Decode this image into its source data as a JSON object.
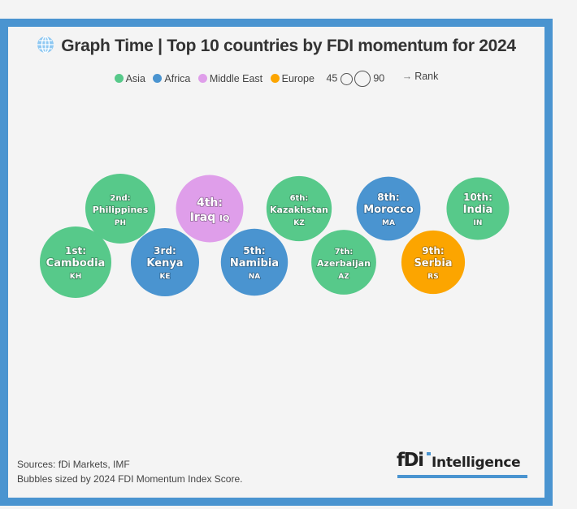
{
  "title": "Graph Time | Top 10 countries by FDI momentum for 2024",
  "title_icon": "globe-icon",
  "legend": {
    "regions": [
      {
        "name": "Asia",
        "color": "#57c98a"
      },
      {
        "name": "Africa",
        "color": "#4a94d0"
      },
      {
        "name": "Middle East",
        "color": "#df9eea"
      },
      {
        "name": "Europe",
        "color": "#fca500"
      }
    ],
    "size_min_label": "45",
    "size_max_label": "90",
    "rank_label": "Rank",
    "rank_arrow": "→"
  },
  "chart_data": {
    "type": "bubble",
    "title": "Graph Time | Top 10 countries by FDI momentum for 2024",
    "size_metric": "2024 FDI Momentum Index Score",
    "size_legend": [
      45,
      90
    ],
    "order": "rank",
    "points": [
      {
        "rank": 1,
        "rank_label": "1st:",
        "country": "Cambodia",
        "code": "KH",
        "region": "Asia",
        "score": 90
      },
      {
        "rank": 2,
        "rank_label": "2nd:",
        "country": "Philippines",
        "code": "PH",
        "region": "Asia",
        "score": 86
      },
      {
        "rank": 3,
        "rank_label": "3rd:",
        "country": "Kenya",
        "code": "KE",
        "region": "Africa",
        "score": 82
      },
      {
        "rank": 4,
        "rank_label": "4th:",
        "country": "Iraq",
        "code": "IQ",
        "region": "Middle East",
        "score": 80
      },
      {
        "rank": 5,
        "rank_label": "5th:",
        "country": "Namibia",
        "code": "NA",
        "region": "Africa",
        "score": 79
      },
      {
        "rank": 6,
        "rank_label": "6th:",
        "country": "Kazakhstan",
        "code": "KZ",
        "region": "Asia",
        "score": 75
      },
      {
        "rank": 7,
        "rank_label": "7th:",
        "country": "Azerbaijan",
        "code": "AZ",
        "region": "Asia",
        "score": 74
      },
      {
        "rank": 8,
        "rank_label": "8th:",
        "country": "Morocco",
        "code": "MA",
        "region": "Africa",
        "score": 72
      },
      {
        "rank": 9,
        "rank_label": "9th:",
        "country": "Serbia",
        "code": "RS",
        "region": "Europe",
        "score": 71
      },
      {
        "rank": 10,
        "rank_label": "10th:",
        "country": "India",
        "code": "IN",
        "region": "Asia",
        "score": 69
      }
    ]
  },
  "footer": {
    "sources": "Sources: fDi Markets, IMF",
    "note": "Bubbles sized by 2024 FDI Momentum Index Score."
  },
  "logo": {
    "mark": "fDi",
    "text": "Intelligence"
  }
}
